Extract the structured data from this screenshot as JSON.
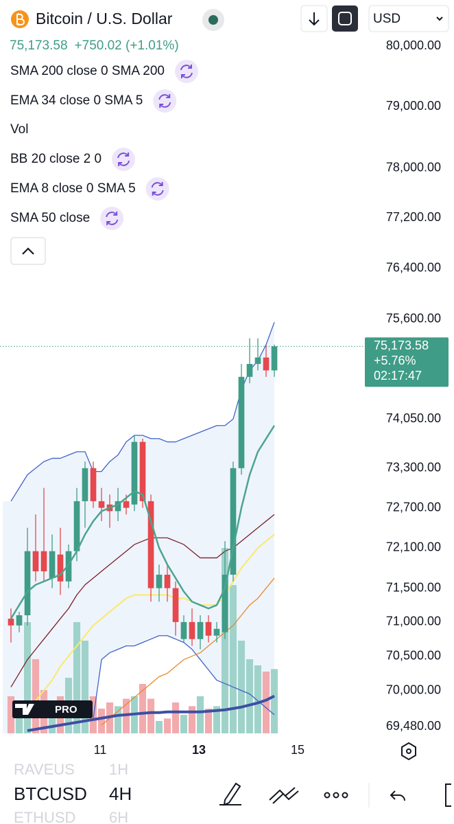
{
  "header": {
    "symbol": "Bitcoin / U.S. Dollar",
    "price": "75,173.58",
    "change": "+750.02 (+1.01%)",
    "currency": "USD"
  },
  "indicators": [
    "SMA 200 close 0 SMA 200",
    "EMA 34 close 0 SMA 5",
    "Vol",
    "BB 20 close 2 0",
    "EMA 8 close 0 SMA 5",
    "SMA 50 close"
  ],
  "price_label": {
    "price": "75,173.58",
    "change": "+5.76%",
    "countdown": "02:17:47"
  },
  "logo": "PRO",
  "bottom_bar": {
    "rows": [
      {
        "symbol": "RAVEUS",
        "interval": "1H"
      },
      {
        "symbol": "BTCUSD",
        "interval": "4H"
      },
      {
        "symbol": "ETHUSD",
        "interval": "6H"
      }
    ]
  },
  "chart_data": {
    "type": "candlestick",
    "log_scale": true,
    "up_color": "#3f9c86",
    "down_color": "#e5484d",
    "volume_up_color": "#9fd3ca",
    "volume_down_color": "#f2aaad",
    "x": [
      9.194,
      9.361,
      9.528,
      9.694,
      9.861,
      10.028,
      10.194,
      10.361,
      10.528,
      10.694,
      10.861,
      11.028,
      11.194,
      11.361,
      11.528,
      11.694,
      11.861,
      12.028,
      12.194,
      12.361,
      12.528,
      12.694,
      12.861,
      13.028,
      13.194,
      13.361,
      13.528,
      13.694,
      13.861,
      14.028,
      14.194,
      14.361,
      14.528
    ],
    "open": [
      71050,
      70950,
      71100,
      72050,
      72050,
      71650,
      72000,
      71600,
      72050,
      72800,
      73300,
      72800,
      72750,
      72650,
      72800,
      72750,
      73700,
      72800,
      71500,
      71700,
      71500,
      70750,
      71000,
      70750,
      71000,
      70800,
      70850,
      71700,
      73300,
      74700,
      74900,
      75000,
      74800
    ],
    "high": [
      71200,
      71150,
      72400,
      72600,
      73000,
      72300,
      72400,
      72150,
      73000,
      73400,
      73400,
      73000,
      72900,
      73000,
      72900,
      73800,
      73750,
      72900,
      71850,
      71850,
      71600,
      71100,
      71200,
      71100,
      71100,
      71000,
      72200,
      73400,
      74900,
      75300,
      75300,
      75200,
      75200
    ],
    "low": [
      70700,
      70850,
      70950,
      71600,
      71600,
      71500,
      71400,
      71500,
      71900,
      72400,
      72700,
      72500,
      72400,
      72500,
      72600,
      72650,
      72700,
      71300,
      71300,
      71300,
      70800,
      70700,
      70650,
      70600,
      70700,
      70700,
      70750,
      71600,
      73200,
      74600,
      74800,
      74700,
      74700
    ],
    "close": [
      70950,
      71100,
      72050,
      71750,
      71750,
      72050,
      71600,
      72050,
      72800,
      73300,
      72800,
      72700,
      72650,
      72800,
      72700,
      73700,
      72800,
      71500,
      71700,
      71500,
      71000,
      71000,
      70750,
      71000,
      70800,
      70900,
      71700,
      73300,
      74700,
      74900,
      75000,
      74800,
      75173.58
    ],
    "volume": [
      30,
      20,
      90,
      60,
      35,
      25,
      30,
      45,
      90,
      75,
      30,
      20,
      25,
      22,
      28,
      30,
      40,
      28,
      10,
      12,
      25,
      15,
      22,
      30,
      20,
      22,
      150,
      120,
      75,
      60,
      55,
      50,
      52
    ],
    "vlim": [
      0,
      150
    ],
    "band_fill": "#eef4fc",
    "series": [
      {
        "color": "#3f63c9",
        "width": 1.3,
        "values": [
          72800,
          73000,
          73200,
          73300,
          73400,
          73450,
          73450,
          73500,
          73550,
          73550,
          73250,
          73250,
          73400,
          73500,
          73700,
          73800,
          73800,
          73750,
          73750,
          73700,
          73700,
          73750,
          73800,
          73850,
          73900,
          73950,
          73950,
          74050,
          74500,
          74800,
          74950,
          75200,
          75550
        ]
      },
      {
        "color": "#3f63c9",
        "width": 1.3,
        "values": [
          null,
          null,
          null,
          null,
          null,
          null,
          null,
          null,
          null,
          null,
          69600,
          70450,
          70550,
          70600,
          70650,
          70650,
          70700,
          70750,
          70800,
          70800,
          70750,
          70700,
          70600,
          70450,
          70300,
          70150,
          70100,
          70050,
          70000,
          69950,
          69850,
          69750,
          69650
        ]
      },
      {
        "color": "#7a1f2b",
        "width": 1.3,
        "values": [
          70050,
          70250,
          70450,
          70600,
          70750,
          70900,
          71050,
          71200,
          71400,
          71550,
          71650,
          71750,
          71850,
          71950,
          72050,
          72150,
          72200,
          72250,
          72250,
          72250,
          72200,
          72150,
          72050,
          71950,
          71950,
          71950,
          72050,
          72100,
          72200,
          72300,
          72400,
          72500,
          72600
        ]
      },
      {
        "color": "#fbe96a",
        "width": 2,
        "values": [
          null,
          null,
          69650,
          69850,
          70000,
          70150,
          70350,
          70500,
          70650,
          70800,
          70950,
          71050,
          71150,
          71250,
          71350,
          71400,
          71400,
          71400,
          71400,
          71400,
          71350,
          71350,
          71300,
          71250,
          71250,
          71250,
          71400,
          71600,
          71800,
          71950,
          72100,
          72200,
          72300
        ]
      },
      {
        "color": "#e8892e",
        "width": 1.3,
        "values": [
          null,
          null,
          null,
          null,
          null,
          null,
          null,
          null,
          null,
          null,
          null,
          69500,
          69600,
          69700,
          69800,
          69900,
          70000,
          70100,
          70200,
          70250,
          70350,
          70450,
          70500,
          70550,
          70650,
          70750,
          70850,
          70950,
          71100,
          71250,
          71350,
          71500,
          71650
        ]
      },
      {
        "color": "#4ba48f",
        "width": 2.5,
        "values": [
          71050,
          71250,
          71450,
          71550,
          71600,
          71650,
          71700,
          71850,
          72050,
          72300,
          72500,
          72650,
          72700,
          72750,
          72850,
          72950,
          72900,
          72500,
          72100,
          71850,
          71650,
          71450,
          71300,
          71250,
          71200,
          71250,
          71500,
          72100,
          72700,
          73200,
          73550,
          73750,
          73950
        ]
      },
      {
        "color": "#3d4fa3",
        "width": 4,
        "values": [
          null,
          null,
          69420,
          69440,
          69460,
          69480,
          69500,
          69520,
          69540,
          69560,
          69580,
          69600,
          69620,
          69640,
          69650,
          69660,
          69670,
          69680,
          69680,
          69690,
          69690,
          69690,
          69690,
          69690,
          69700,
          69710,
          69720,
          69740,
          69760,
          69790,
          69820,
          69860,
          69920
        ]
      }
    ],
    "xlim": [
      8.972,
      16.333
    ],
    "xticks": [
      11,
      13,
      15
    ],
    "ylim": [
      69480,
      80000
    ],
    "yticks": [
      {
        "value": 80000,
        "label": "80,000.00"
      },
      {
        "value": 79000,
        "label": "79,000.00"
      },
      {
        "value": 78000,
        "label": "78,000.00"
      },
      {
        "value": 77200,
        "label": "77,200.00"
      },
      {
        "value": 76400,
        "label": "76,400.00"
      },
      {
        "value": 75600,
        "label": "75,600.00"
      },
      {
        "value": 74050,
        "label": "74,050.00"
      },
      {
        "value": 73300,
        "label": "73,300.00"
      },
      {
        "value": 72700,
        "label": "72,700.00"
      },
      {
        "value": 72100,
        "label": "72,100.00"
      },
      {
        "value": 71500,
        "label": "71,500.00"
      },
      {
        "value": 71000,
        "label": "71,000.00"
      },
      {
        "value": 70500,
        "label": "70,500.00"
      },
      {
        "value": 70000,
        "label": "70,000.00"
      },
      {
        "value": 69480,
        "label": "69,480.00"
      }
    ]
  }
}
